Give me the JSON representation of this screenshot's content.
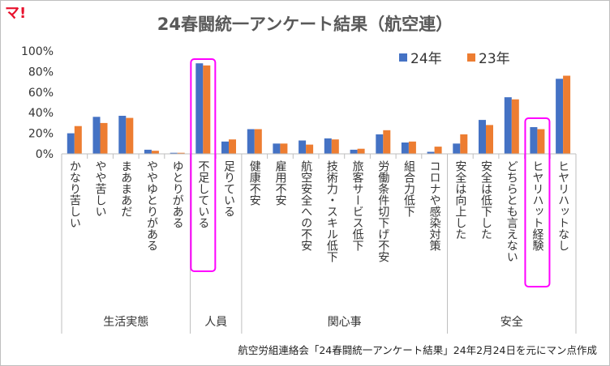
{
  "logo_text": "マ!",
  "title": "24春闘統一アンケート結果（航空連）",
  "source_note": "航空労組連絡会「24春闘統一アンケート結果」24年2月24日を元にマン点作成",
  "chart_data": {
    "type": "bar",
    "title": "24春闘統一アンケート結果（航空連）",
    "categories": [
      "かなり苦しい",
      "やや苦しい",
      "まあまあだ",
      "ややゆとりがある",
      "ゆとりがある",
      "不足している",
      "足りている",
      "健康不安",
      "雇用不安",
      "航空安全への不安",
      "技術力・スキル低下",
      "旅客サービス低下",
      "労働条件切下げ不安",
      "組合力低下",
      "コロナや感染対策",
      "安全は向上した",
      "安全は低下した",
      "どちらとも言えない",
      "ヒヤリハット経験",
      "ヒヤリハットなし"
    ],
    "groups": [
      {
        "label": "生活実態",
        "count": 5
      },
      {
        "label": "人員",
        "count": 2
      },
      {
        "label": "関心事",
        "count": 8
      },
      {
        "label": "安全",
        "count": 5
      }
    ],
    "series": [
      {
        "name": "24年",
        "color": "#4472c4",
        "values": [
          20,
          36,
          37,
          4,
          1,
          88,
          12,
          24,
          10,
          13,
          15,
          4,
          19,
          11,
          2,
          10,
          33,
          55,
          26,
          73
        ]
      },
      {
        "name": "23年",
        "color": "#ed7d31",
        "values": [
          27,
          30,
          35,
          3,
          1,
          86,
          14,
          24,
          10,
          9,
          14,
          5,
          23,
          12,
          7,
          19,
          28,
          53,
          24,
          76
        ]
      }
    ],
    "ylim": [
      0,
      100
    ],
    "yticks": [
      "0%",
      "20%",
      "40%",
      "60%",
      "80%",
      "100%"
    ],
    "legend_position": "top-right",
    "highlight_categories": [
      "不足している",
      "ヒヤリハット経験"
    ],
    "highlight_color": "#ff00ff",
    "grid": false
  }
}
